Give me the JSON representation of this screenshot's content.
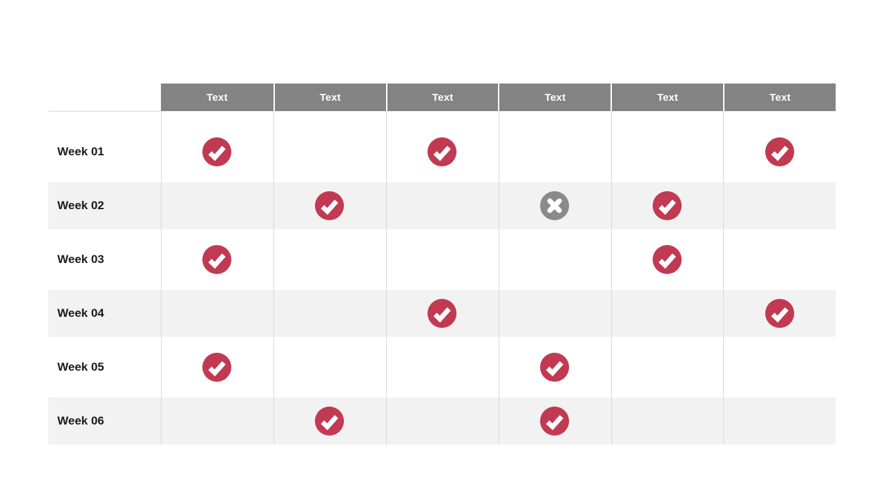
{
  "colors": {
    "header_bg": "#838383",
    "header_text": "#ffffff",
    "check": "#C13A52",
    "cross": "#8A8A8A",
    "icon_mark": "#ffffff",
    "row_alt_bg": "#F2F2F2",
    "row_label": "#1A1A1A",
    "grid_line": "#D9D9D9",
    "underline": "#E8E8E8"
  },
  "table": {
    "columns": [
      {
        "label": "Text"
      },
      {
        "label": "Text"
      },
      {
        "label": "Text"
      },
      {
        "label": "Text"
      },
      {
        "label": "Text"
      },
      {
        "label": "Text"
      }
    ],
    "rows": [
      {
        "label": "Week 01",
        "cells": [
          "check",
          "",
          "check",
          "",
          "",
          "check"
        ]
      },
      {
        "label": "Week 02",
        "cells": [
          "",
          "check",
          "",
          "cross",
          "check",
          ""
        ]
      },
      {
        "label": "Week 03",
        "cells": [
          "check",
          "",
          "",
          "",
          "check",
          ""
        ]
      },
      {
        "label": "Week 04",
        "cells": [
          "",
          "",
          "check",
          "",
          "",
          "check"
        ]
      },
      {
        "label": "Week 05",
        "cells": [
          "check",
          "",
          "",
          "check",
          "",
          ""
        ]
      },
      {
        "label": "Week 06",
        "cells": [
          "",
          "check",
          "",
          "check",
          "",
          ""
        ]
      }
    ]
  },
  "icons": {
    "check": "check-icon",
    "cross": "cross-icon"
  }
}
